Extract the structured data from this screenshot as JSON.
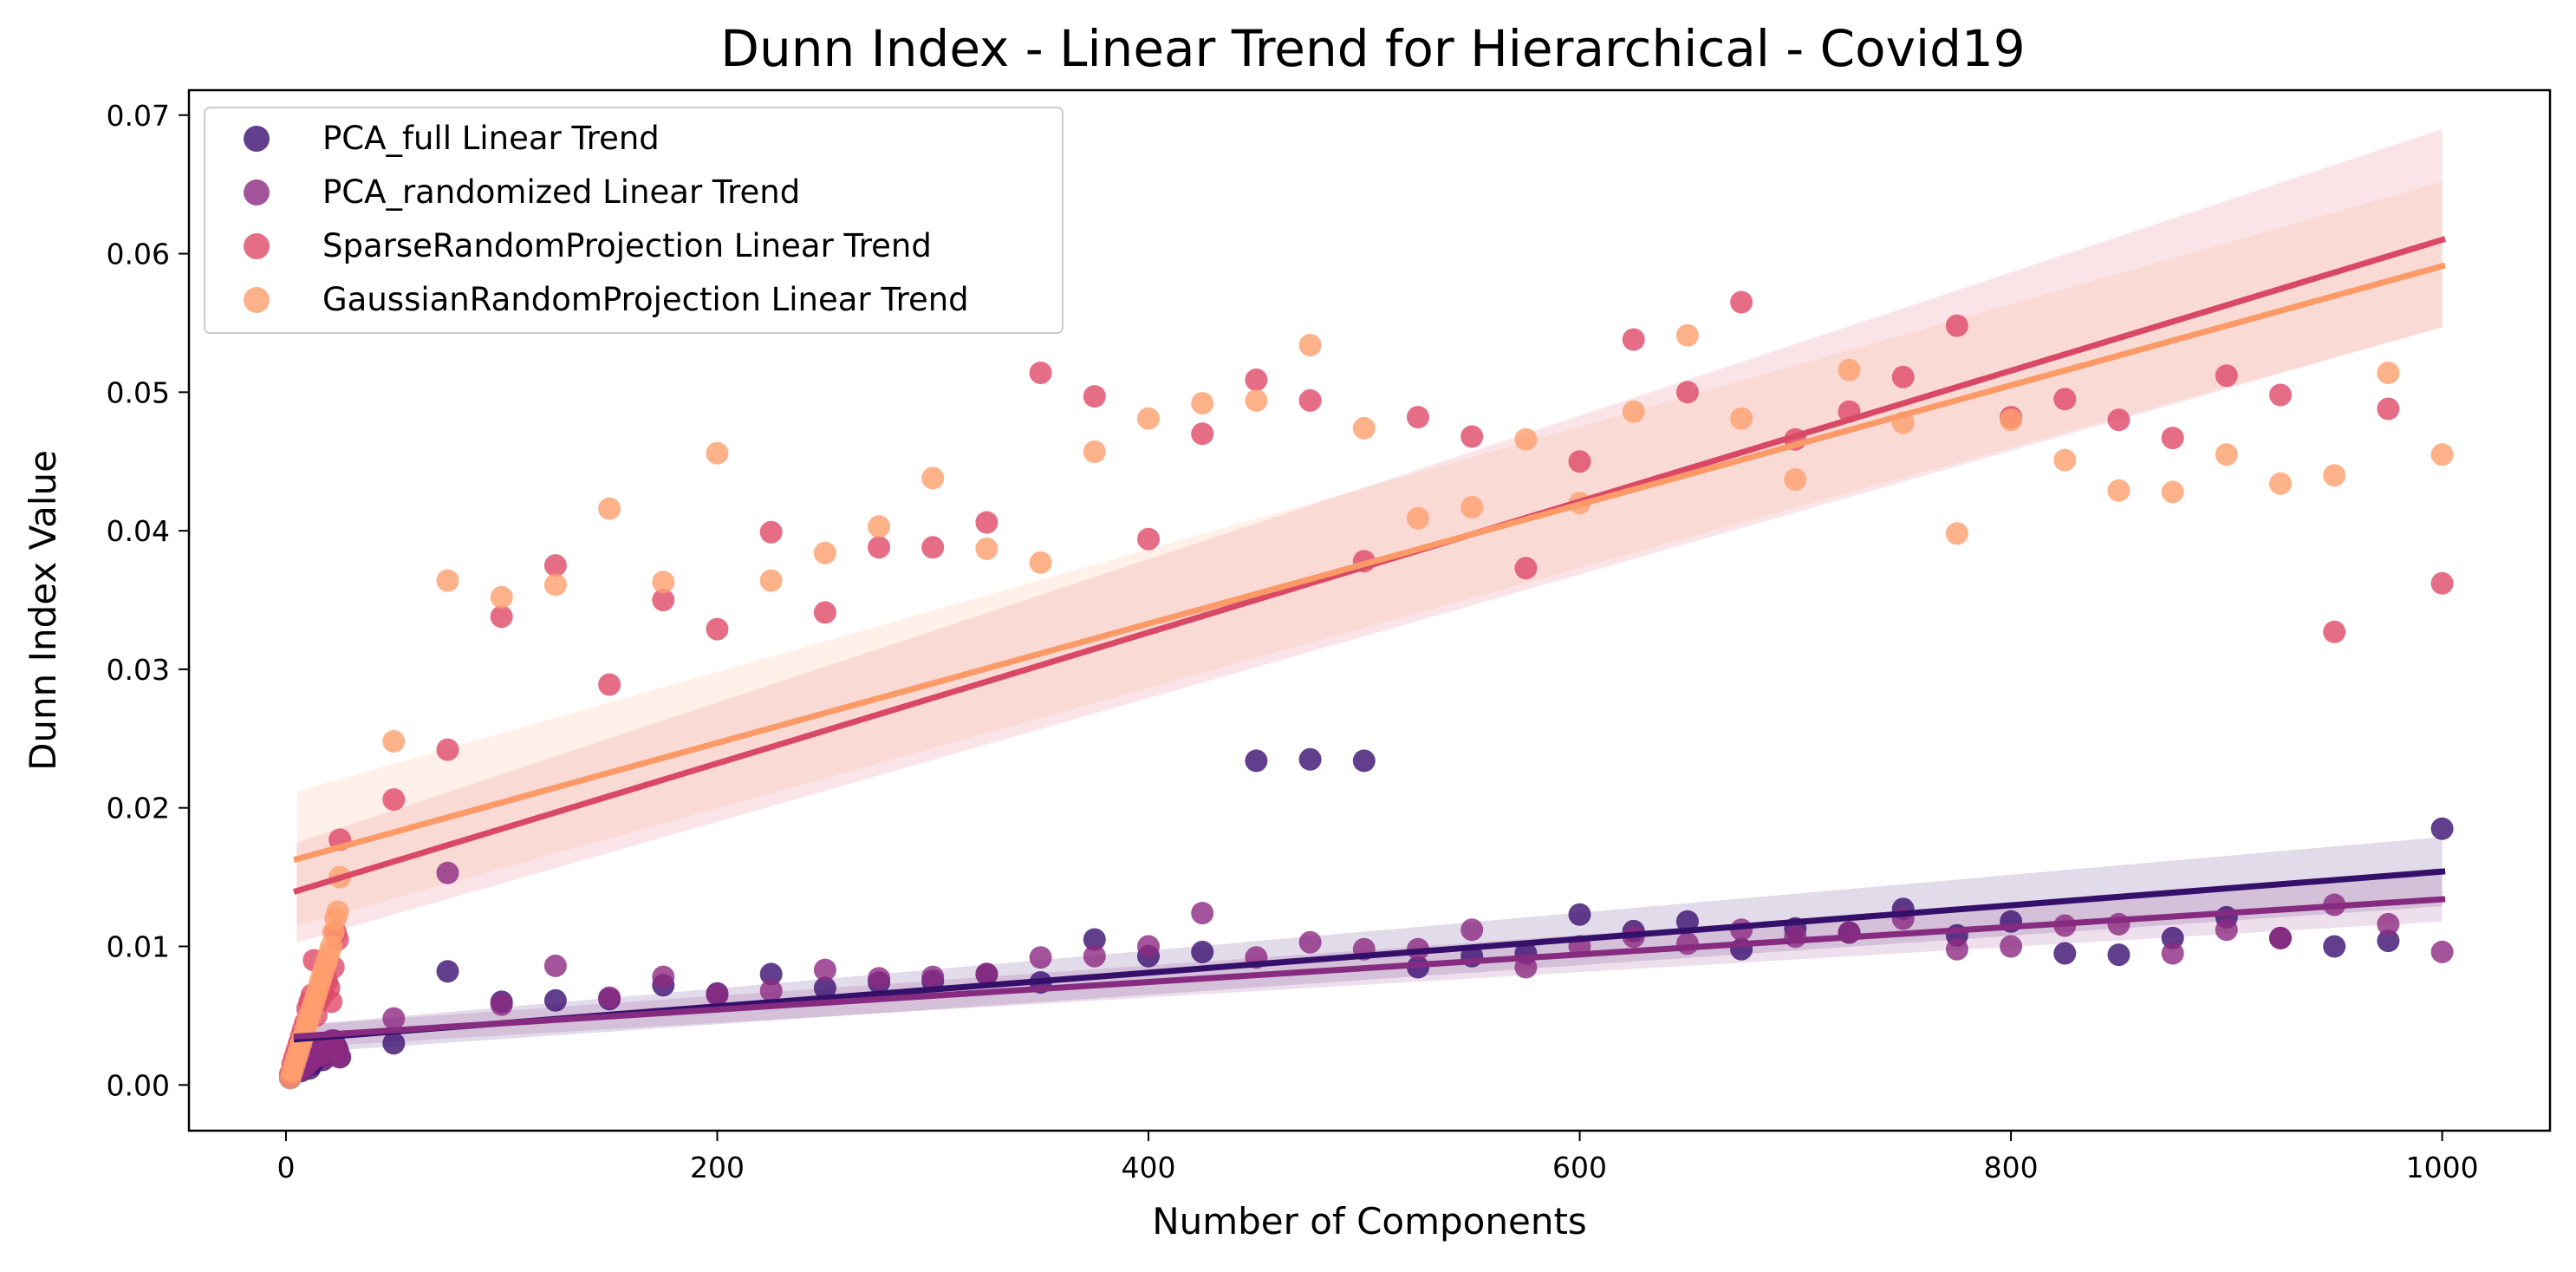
{
  "chart_data": {
    "type": "scatter",
    "title": "Dunn Index - Linear Trend for Hierarchical - Covid19",
    "xlabel": "Number of Components",
    "ylabel": "Dunn Index Value",
    "xlim": [
      -45,
      1050
    ],
    "ylim": [
      -0.0033,
      0.0718
    ],
    "xticks": [
      0,
      200,
      400,
      600,
      800,
      1000
    ],
    "xtick_labels": [
      "0",
      "200",
      "400",
      "600",
      "800",
      "1000"
    ],
    "yticks": [
      0,
      0.01,
      0.02,
      0.03,
      0.04,
      0.05,
      0.06,
      0.07
    ],
    "ytick_labels": [
      "0.00",
      "0.01",
      "0.02",
      "0.03",
      "0.04",
      "0.05",
      "0.06",
      "0.07"
    ],
    "legend_position": "top-left",
    "grid": false,
    "series": [
      {
        "name": "PCA_full Linear Trend",
        "color": "#3b0f70",
        "line_color": "#35106a",
        "points": [
          [
            2,
            0.0005
          ],
          [
            3,
            0.001
          ],
          [
            4,
            0.0015
          ],
          [
            5,
            0.0015
          ],
          [
            6,
            0.002
          ],
          [
            7,
            0.001
          ],
          [
            8,
            0.0012
          ],
          [
            9,
            0.002
          ],
          [
            10,
            0.0022
          ],
          [
            11,
            0.0012
          ],
          [
            12,
            0.0015
          ],
          [
            13,
            0.0018
          ],
          [
            14,
            0.002
          ],
          [
            15,
            0.0025
          ],
          [
            16,
            0.002
          ],
          [
            17,
            0.0018
          ],
          [
            18,
            0.0025
          ],
          [
            19,
            0.003
          ],
          [
            20,
            0.0022
          ],
          [
            21,
            0.003
          ],
          [
            22,
            0.0032
          ],
          [
            23,
            0.0028
          ],
          [
            24,
            0.0025
          ],
          [
            25,
            0.002
          ],
          [
            50,
            0.003
          ],
          [
            75,
            0.0082
          ],
          [
            100,
            0.006
          ],
          [
            125,
            0.0061
          ],
          [
            150,
            0.0062
          ],
          [
            175,
            0.0072
          ],
          [
            200,
            0.0066
          ],
          [
            225,
            0.008
          ],
          [
            250,
            0.007
          ],
          [
            275,
            0.0074
          ],
          [
            300,
            0.0075
          ],
          [
            325,
            0.008
          ],
          [
            350,
            0.0074
          ],
          [
            375,
            0.0105
          ],
          [
            400,
            0.0093
          ],
          [
            425,
            0.0096
          ],
          [
            450,
            0.0234
          ],
          [
            475,
            0.0235
          ],
          [
            500,
            0.0234
          ],
          [
            525,
            0.0085
          ],
          [
            550,
            0.0093
          ],
          [
            575,
            0.0095
          ],
          [
            600,
            0.0123
          ],
          [
            625,
            0.0111
          ],
          [
            650,
            0.0118
          ],
          [
            675,
            0.0098
          ],
          [
            700,
            0.0113
          ],
          [
            725,
            0.011
          ],
          [
            750,
            0.0127
          ],
          [
            775,
            0.0108
          ],
          [
            800,
            0.0118
          ],
          [
            825,
            0.0095
          ],
          [
            850,
            0.0094
          ],
          [
            875,
            0.0106
          ],
          [
            900,
            0.0121
          ],
          [
            925,
            0.0106
          ],
          [
            950,
            0.01
          ],
          [
            975,
            0.0104
          ],
          [
            1000,
            0.0185
          ]
        ],
        "trend": [
          [
            5,
            0.0033
          ],
          [
            1000,
            0.0154
          ]
        ],
        "ci_start": [
          0.0023,
          0.0043
        ],
        "ci_end": [
          0.0129,
          0.0179
        ]
      },
      {
        "name": "PCA_randomized Linear Trend",
        "color": "#8c2981",
        "line_color": "#862b80",
        "points": [
          [
            2,
            0.0006
          ],
          [
            3,
            0.001
          ],
          [
            4,
            0.0012
          ],
          [
            5,
            0.0015
          ],
          [
            6,
            0.001
          ],
          [
            7,
            0.0018
          ],
          [
            8,
            0.0012
          ],
          [
            9,
            0.002
          ],
          [
            10,
            0.0015
          ],
          [
            11,
            0.0022
          ],
          [
            12,
            0.0018
          ],
          [
            13,
            0.002
          ],
          [
            14,
            0.0025
          ],
          [
            15,
            0.0028
          ],
          [
            16,
            0.0022
          ],
          [
            17,
            0.0025
          ],
          [
            18,
            0.003
          ],
          [
            19,
            0.002
          ],
          [
            20,
            0.0028
          ],
          [
            21,
            0.0032
          ],
          [
            22,
            0.003
          ],
          [
            23,
            0.0026
          ],
          [
            24,
            0.0024
          ],
          [
            25,
            0.002
          ],
          [
            50,
            0.0048
          ],
          [
            75,
            0.0153
          ],
          [
            100,
            0.0058
          ],
          [
            125,
            0.0086
          ],
          [
            150,
            0.0063
          ],
          [
            175,
            0.0078
          ],
          [
            200,
            0.0065
          ],
          [
            225,
            0.0068
          ],
          [
            250,
            0.0083
          ],
          [
            275,
            0.0077
          ],
          [
            300,
            0.0078
          ],
          [
            325,
            0.008
          ],
          [
            350,
            0.0092
          ],
          [
            375,
            0.0093
          ],
          [
            400,
            0.01
          ],
          [
            425,
            0.0124
          ],
          [
            450,
            0.0092
          ],
          [
            475,
            0.0103
          ],
          [
            500,
            0.0098
          ],
          [
            525,
            0.0098
          ],
          [
            550,
            0.0112
          ],
          [
            575,
            0.0085
          ],
          [
            600,
            0.01
          ],
          [
            625,
            0.0107
          ],
          [
            650,
            0.0102
          ],
          [
            675,
            0.0112
          ],
          [
            700,
            0.0107
          ],
          [
            725,
            0.011
          ],
          [
            750,
            0.012
          ],
          [
            775,
            0.0098
          ],
          [
            800,
            0.01
          ],
          [
            825,
            0.0115
          ],
          [
            850,
            0.0116
          ],
          [
            875,
            0.0095
          ],
          [
            900,
            0.0112
          ],
          [
            925,
            0.0106
          ],
          [
            950,
            0.013
          ],
          [
            975,
            0.0116
          ],
          [
            1000,
            0.0096
          ]
        ],
        "trend": [
          [
            5,
            0.0035
          ],
          [
            1000,
            0.0134
          ]
        ],
        "ci_start": [
          0.0027,
          0.0043
        ],
        "ci_end": [
          0.0118,
          0.0152
        ]
      },
      {
        "name": "SparseRandomProjection Linear Trend",
        "color": "#de4968",
        "line_color": "#d94966",
        "points": [
          [
            2,
            0.0008
          ],
          [
            3,
            0.0015
          ],
          [
            4,
            0.002
          ],
          [
            5,
            0.0025
          ],
          [
            6,
            0.003
          ],
          [
            7,
            0.0035
          ],
          [
            8,
            0.004
          ],
          [
            9,
            0.0045
          ],
          [
            10,
            0.0055
          ],
          [
            11,
            0.006
          ],
          [
            12,
            0.0065
          ],
          [
            13,
            0.009
          ],
          [
            14,
            0.005
          ],
          [
            15,
            0.006
          ],
          [
            16,
            0.007
          ],
          [
            17,
            0.0065
          ],
          [
            18,
            0.008
          ],
          [
            19,
            0.0075
          ],
          [
            20,
            0.007
          ],
          [
            21,
            0.006
          ],
          [
            22,
            0.0085
          ],
          [
            23,
            0.011
          ],
          [
            24,
            0.0105
          ],
          [
            25,
            0.0177
          ],
          [
            50,
            0.0206
          ],
          [
            75,
            0.0242
          ],
          [
            100,
            0.0338
          ],
          [
            125,
            0.0375
          ],
          [
            150,
            0.0289
          ],
          [
            175,
            0.035
          ],
          [
            200,
            0.0329
          ],
          [
            225,
            0.0399
          ],
          [
            250,
            0.0341
          ],
          [
            275,
            0.0388
          ],
          [
            300,
            0.0388
          ],
          [
            325,
            0.0406
          ],
          [
            350,
            0.0514
          ],
          [
            375,
            0.0497
          ],
          [
            400,
            0.0394
          ],
          [
            425,
            0.047
          ],
          [
            450,
            0.0509
          ],
          [
            475,
            0.0494
          ],
          [
            500,
            0.0378
          ],
          [
            525,
            0.0482
          ],
          [
            550,
            0.0468
          ],
          [
            575,
            0.0373
          ],
          [
            600,
            0.045
          ],
          [
            625,
            0.0538
          ],
          [
            650,
            0.05
          ],
          [
            675,
            0.0565
          ],
          [
            700,
            0.0466
          ],
          [
            725,
            0.0486
          ],
          [
            750,
            0.0511
          ],
          [
            775,
            0.0548
          ],
          [
            800,
            0.0482
          ],
          [
            825,
            0.0495
          ],
          [
            850,
            0.048
          ],
          [
            875,
            0.0467
          ],
          [
            900,
            0.0512
          ],
          [
            925,
            0.0498
          ],
          [
            950,
            0.0327
          ],
          [
            975,
            0.0488
          ],
          [
            1000,
            0.0362
          ]
        ],
        "trend": [
          [
            5,
            0.014
          ],
          [
            1000,
            0.061
          ]
        ],
        "ci_start": [
          0.0103,
          0.0175
        ],
        "ci_end": [
          0.0547,
          0.069
        ]
      },
      {
        "name": "GaussianRandomProjection Linear Trend",
        "color": "#fe9f6d",
        "line_color": "#fb9a67",
        "points": [
          [
            2,
            0.0005
          ],
          [
            3,
            0.001
          ],
          [
            4,
            0.0015
          ],
          [
            5,
            0.002
          ],
          [
            6,
            0.0025
          ],
          [
            7,
            0.003
          ],
          [
            8,
            0.0035
          ],
          [
            9,
            0.004
          ],
          [
            10,
            0.0045
          ],
          [
            11,
            0.005
          ],
          [
            12,
            0.0055
          ],
          [
            13,
            0.006
          ],
          [
            14,
            0.0065
          ],
          [
            15,
            0.007
          ],
          [
            16,
            0.0075
          ],
          [
            17,
            0.008
          ],
          [
            18,
            0.0085
          ],
          [
            19,
            0.009
          ],
          [
            20,
            0.0095
          ],
          [
            21,
            0.01
          ],
          [
            22,
            0.011
          ],
          [
            23,
            0.012
          ],
          [
            24,
            0.0125
          ],
          [
            25,
            0.015
          ],
          [
            50,
            0.0248
          ],
          [
            75,
            0.0364
          ],
          [
            100,
            0.0352
          ],
          [
            125,
            0.0361
          ],
          [
            150,
            0.0416
          ],
          [
            175,
            0.0363
          ],
          [
            200,
            0.0456
          ],
          [
            225,
            0.0364
          ],
          [
            250,
            0.0384
          ],
          [
            275,
            0.0403
          ],
          [
            300,
            0.0438
          ],
          [
            325,
            0.0387
          ],
          [
            350,
            0.0377
          ],
          [
            375,
            0.0457
          ],
          [
            400,
            0.0481
          ],
          [
            425,
            0.0492
          ],
          [
            450,
            0.0494
          ],
          [
            475,
            0.0534
          ],
          [
            500,
            0.0474
          ],
          [
            525,
            0.0409
          ],
          [
            550,
            0.0417
          ],
          [
            575,
            0.0466
          ],
          [
            600,
            0.042
          ],
          [
            625,
            0.0486
          ],
          [
            650,
            0.0541
          ],
          [
            675,
            0.0481
          ],
          [
            700,
            0.0437
          ],
          [
            725,
            0.0516
          ],
          [
            750,
            0.0478
          ],
          [
            775,
            0.0398
          ],
          [
            800,
            0.048
          ],
          [
            825,
            0.0451
          ],
          [
            850,
            0.0429
          ],
          [
            875,
            0.0428
          ],
          [
            900,
            0.0455
          ],
          [
            925,
            0.0434
          ],
          [
            950,
            0.044
          ],
          [
            975,
            0.0514
          ],
          [
            1000,
            0.0455
          ]
        ],
        "trend": [
          [
            5,
            0.0163
          ],
          [
            1000,
            0.0591
          ]
        ],
        "ci_start": [
          0.0115,
          0.0212
        ],
        "ci_end": [
          0.0547,
          0.0652
        ]
      }
    ]
  }
}
